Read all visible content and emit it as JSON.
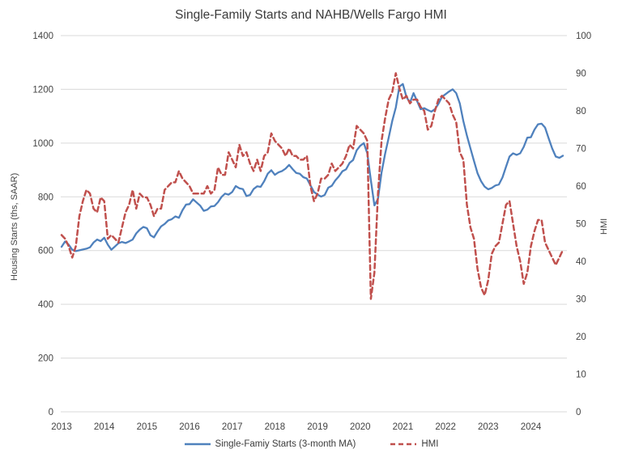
{
  "title": "Single-Family Starts and NAHB/Wells Fargo HMI",
  "chart_data": {
    "type": "line",
    "title": "Single-Family Starts and NAHB/Wells Fargo HMI",
    "frequency": "monthly",
    "x_start": "2013-01",
    "x_end": "2024-10",
    "year_labels": [
      "2013",
      "2014",
      "2015",
      "2016",
      "2017",
      "2018",
      "2019",
      "2020",
      "2021",
      "2022",
      "2023",
      "2024"
    ],
    "left_axis": {
      "label": "Housing Starts (ths, SAAR)",
      "min": 0,
      "max": 1400,
      "tick_step": 200
    },
    "right_axis": {
      "label": "HMI",
      "min": 0,
      "max": 100,
      "tick_step": 10
    },
    "grid": "horizontal",
    "legend_position": "bottom",
    "series": [
      {
        "name": "Single-Famiy Starts (3-month MA)",
        "axis": "left",
        "color": "#4f81bd",
        "style": "solid",
        "values": [
          614,
          634,
          622,
          603,
          598,
          601,
          604,
          607,
          612,
          630,
          641,
          635,
          648,
          622,
          603,
          615,
          627,
          632,
          628,
          634,
          641,
          664,
          678,
          688,
          683,
          657,
          649,
          671,
          690,
          699,
          712,
          717,
          727,
          722,
          750,
          771,
          773,
          791,
          779,
          767,
          748,
          752,
          764,
          766,
          780,
          800,
          812,
          808,
          818,
          840,
          832,
          829,
          803,
          807,
          829,
          839,
          837,
          858,
          886,
          899,
          882,
          891,
          896,
          905,
          919,
          903,
          889,
          886,
          873,
          868,
          843,
          818,
          808,
          801,
          807,
          834,
          841,
          861,
          876,
          895,
          902,
          926,
          937,
          973,
          990,
          1000,
          962,
          862,
          768,
          792,
          890,
          960,
          1020,
          1082,
          1132,
          1210,
          1220,
          1172,
          1150,
          1186,
          1156,
          1126,
          1130,
          1123,
          1117,
          1126,
          1146,
          1172,
          1182,
          1192,
          1200,
          1186,
          1148,
          1082,
          1028,
          980,
          934,
          888,
          858,
          838,
          828,
          833,
          842,
          846,
          872,
          912,
          950,
          962,
          956,
          962,
          986,
          1020,
          1022,
          1050,
          1070,
          1072,
          1058,
          1018,
          980,
          950,
          945,
          953
        ]
      },
      {
        "name": "HMI",
        "axis": "right",
        "color": "#c0504d",
        "style": "dashed",
        "values": [
          47,
          46,
          44,
          41,
          44,
          52,
          56,
          59,
          58,
          54,
          53,
          57,
          56,
          46,
          47,
          46,
          45,
          49,
          53,
          55,
          59,
          54,
          58,
          57,
          57,
          55,
          52,
          54,
          54,
          59,
          60,
          61,
          61,
          64,
          62,
          61,
          60,
          58,
          58,
          58,
          58,
          60,
          58,
          59,
          65,
          63,
          63,
          69,
          67,
          65,
          71,
          68,
          69,
          66,
          64,
          67,
          64,
          68,
          69,
          74,
          72,
          71,
          70,
          68,
          70,
          68,
          68,
          67,
          67,
          68,
          60,
          56,
          58,
          62,
          62,
          63,
          66,
          64,
          65,
          66,
          68,
          71,
          70,
          76,
          75,
          74,
          72,
          30,
          37,
          58,
          72,
          78,
          83,
          85,
          90,
          86,
          83,
          84,
          82,
          83,
          83,
          81,
          80,
          75,
          76,
          80,
          83,
          84,
          83,
          82,
          79,
          77,
          69,
          67,
          55,
          49,
          46,
          38,
          33,
          31,
          35,
          42,
          44,
          45,
          50,
          55,
          56,
          50,
          44,
          40,
          34,
          37,
          44,
          48,
          51,
          51,
          45,
          43,
          41,
          39,
          41,
          43
        ]
      }
    ],
    "colors": {
      "grid": "#d9d9d9",
      "text": "#3b3b3b",
      "background": "#ffffff"
    }
  }
}
